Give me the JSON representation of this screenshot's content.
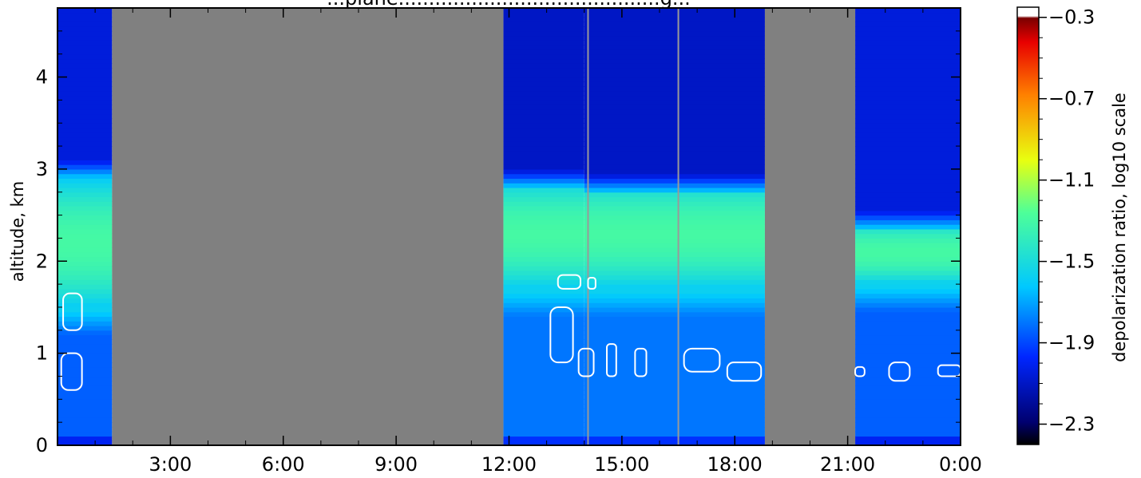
{
  "chart_data": {
    "type": "heatmap",
    "title": "...plane...........................................g...",
    "ylabel": "altitude, km",
    "colorbar_label": "depolarization ratio, log10 scale",
    "x_unit": "hours",
    "xlim": [
      0,
      24
    ],
    "ylim": [
      0,
      4.75
    ],
    "x_ticks": [
      3,
      6,
      9,
      12,
      15,
      18,
      21,
      24
    ],
    "x_tick_labels": [
      "3:00",
      "6:00",
      "9:00",
      "12:00",
      "15:00",
      "18:00",
      "21:00",
      "0:00"
    ],
    "y_ticks": [
      0,
      1,
      2,
      3,
      4
    ],
    "y_tick_labels": [
      "0",
      "1",
      "2",
      "3",
      "4"
    ],
    "colorbar_range": [
      -2.4,
      -0.25
    ],
    "colorbar_ticks": [
      -0.3,
      -0.7,
      -1.1,
      -1.5,
      -1.9,
      -2.3
    ],
    "colorbar_tick_labels": [
      "−0.3",
      "−0.7",
      "−1.1",
      "−1.5",
      "−1.9",
      "−2.3"
    ],
    "no_data_intervals": [
      [
        1.45,
        11.85
      ],
      [
        18.8,
        21.2
      ]
    ],
    "profiles": [
      {
        "x_start": 0.0,
        "x_end": 1.45,
        "layer_bottom_km": 1.5,
        "layer_top_km": 2.9,
        "layer_peak_km": 2.2,
        "peak_value": -1.3,
        "boundary_layer_value": -1.85,
        "free_troposphere_value": -2.05
      },
      {
        "x_start": 11.85,
        "x_end": 14.0,
        "layer_bottom_km": 1.7,
        "layer_top_km": 2.8,
        "layer_peak_km": 2.3,
        "peak_value": -1.3,
        "boundary_layer_value": -1.8,
        "free_troposphere_value": -2.1
      },
      {
        "x_start": 14.0,
        "x_end": 18.8,
        "layer_bottom_km": 1.7,
        "layer_top_km": 2.75,
        "layer_peak_km": 2.3,
        "peak_value": -1.3,
        "boundary_layer_value": -1.8,
        "free_troposphere_value": -2.1
      },
      {
        "x_start": 21.2,
        "x_end": 24.0,
        "layer_bottom_km": 1.75,
        "layer_top_km": 2.35,
        "layer_peak_km": 2.1,
        "peak_value": -1.3,
        "boundary_layer_value": -1.85,
        "free_troposphere_value": -2.05
      }
    ],
    "vertical_lines_x": [
      14.1,
      16.5
    ],
    "contours": [
      {
        "x": 0.15,
        "y": 1.25,
        "w": 0.5,
        "h": 0.4
      },
      {
        "x": 0.1,
        "y": 0.6,
        "w": 0.55,
        "h": 0.4
      },
      {
        "x": 13.3,
        "y": 1.7,
        "w": 0.6,
        "h": 0.15
      },
      {
        "x": 14.1,
        "y": 1.7,
        "w": 0.2,
        "h": 0.12
      },
      {
        "x": 13.1,
        "y": 0.9,
        "w": 0.6,
        "h": 0.6
      },
      {
        "x": 13.85,
        "y": 0.75,
        "w": 0.4,
        "h": 0.3
      },
      {
        "x": 14.6,
        "y": 0.75,
        "w": 0.25,
        "h": 0.35
      },
      {
        "x": 15.35,
        "y": 0.75,
        "w": 0.3,
        "h": 0.3
      },
      {
        "x": 16.65,
        "y": 0.8,
        "w": 0.95,
        "h": 0.25
      },
      {
        "x": 17.8,
        "y": 0.7,
        "w": 0.9,
        "h": 0.2
      },
      {
        "x": 21.2,
        "y": 0.75,
        "w": 0.25,
        "h": 0.1
      },
      {
        "x": 22.1,
        "y": 0.7,
        "w": 0.55,
        "h": 0.2
      },
      {
        "x": 23.4,
        "y": 0.75,
        "w": 0.6,
        "h": 0.12
      }
    ]
  }
}
